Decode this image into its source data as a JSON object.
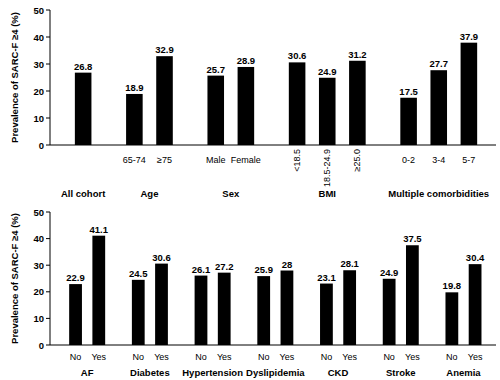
{
  "chart_data": [
    {
      "type": "bar",
      "ylabel": "Prevalence of SARC-F ≥4 (%)",
      "ylim": [
        0,
        50
      ],
      "yticks": [
        0,
        10,
        20,
        30,
        40,
        50
      ],
      "grid": false,
      "data_labels": true,
      "color": "#000000",
      "groups": [
        {
          "label": "All cohort",
          "categories": [
            null
          ],
          "values": [
            26.8
          ]
        },
        {
          "label": "Age",
          "categories": [
            "65-74",
            "≥75"
          ],
          "values": [
            18.9,
            32.9
          ]
        },
        {
          "label": "Sex",
          "categories": [
            "Male",
            "Female"
          ],
          "values": [
            25.7,
            28.9
          ]
        },
        {
          "label": "BMI",
          "categories": [
            "<18.5",
            "18.5-24.9",
            "≥25.0"
          ],
          "values": [
            30.6,
            24.9,
            31.2
          ]
        },
        {
          "label": "Multiple comorbidities",
          "categories": [
            "0-2",
            "3-4",
            "5-7"
          ],
          "values": [
            17.5,
            27.7,
            37.9
          ]
        }
      ]
    },
    {
      "type": "bar",
      "ylabel": "Prevalence of SARC-F ≥4 (%)",
      "ylim": [
        0,
        50
      ],
      "yticks": [
        0,
        10,
        20,
        30,
        40,
        50
      ],
      "grid": false,
      "data_labels": true,
      "color": "#000000",
      "groups": [
        {
          "label": "AF",
          "categories": [
            "No",
            "Yes"
          ],
          "values": [
            22.9,
            41.1
          ]
        },
        {
          "label": "Diabetes",
          "categories": [
            "No",
            "Yes"
          ],
          "values": [
            24.5,
            30.6
          ]
        },
        {
          "label": "Hypertension",
          "categories": [
            "No",
            "Yes"
          ],
          "values": [
            26.1,
            27.2
          ]
        },
        {
          "label": "Dyslipidemia",
          "categories": [
            "No",
            "Yes"
          ],
          "values": [
            25.9,
            28.0
          ]
        },
        {
          "label": "CKD",
          "categories": [
            "No",
            "Yes"
          ],
          "values": [
            23.1,
            28.1
          ]
        },
        {
          "label": "Stroke",
          "categories": [
            "No",
            "Yes"
          ],
          "values": [
            24.9,
            37.5
          ]
        },
        {
          "label": "Anemia",
          "categories": [
            "No",
            "Yes"
          ],
          "values": [
            19.8,
            30.4
          ]
        }
      ]
    }
  ]
}
